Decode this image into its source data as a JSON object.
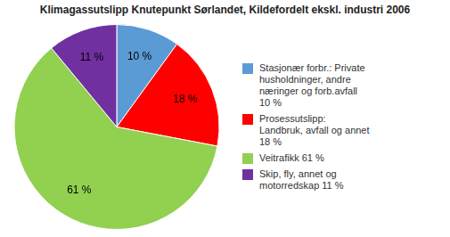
{
  "chart_data": {
    "type": "pie",
    "title": "Klimagassutslipp Knutepunkt Sørlandet, Kildefordelt ekskl. industri 2006",
    "categories": [
      "Stasjonær forbr.: Private\nhusholdninger, andre\nnæringer og forb.avfall\n10 %",
      "Prosessutslipp:\nLandbruk, avfall og annet\n18 %",
      "Veitrafikk 61 %",
      "Skip, fly, annet og\nmotorredskap 11 %"
    ],
    "values": [
      10,
      18,
      61,
      11
    ],
    "value_labels": [
      "10 %",
      "18 %",
      "61 %",
      "11 %"
    ],
    "colors": [
      "#5B9BD5",
      "#FF0000",
      "#92D050",
      "#7030A0"
    ],
    "data_labels": true,
    "legend": "right"
  }
}
